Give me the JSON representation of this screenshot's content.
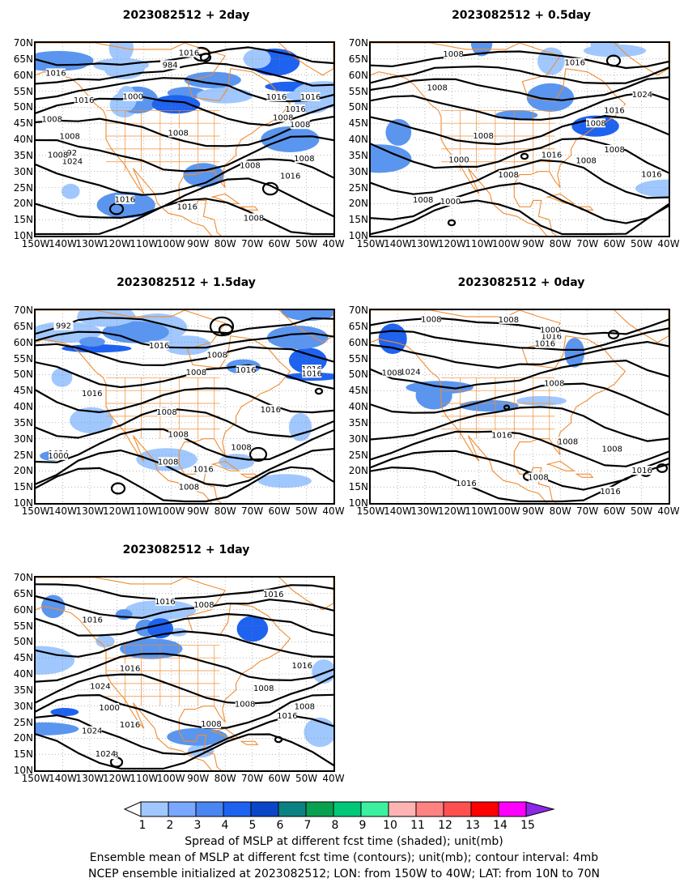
{
  "panels": [
    {
      "title": "2023082512  +  2day",
      "variant": 0,
      "contour_labels": [
        "1008",
        "1016",
        "1016",
        "1016",
        "1016",
        "1016",
        "1016",
        "1008",
        "1008",
        "1016",
        "1008",
        "1008",
        "1008",
        "1008",
        "992",
        "984",
        "1000",
        "1016",
        "1016",
        "1024",
        "1008",
        "1008"
      ]
    },
    {
      "title": "2023082512  +  0.5day",
      "variant": 1,
      "contour_labels": [
        "1008",
        "1008",
        "1024",
        "1016",
        "1016",
        "1008",
        "1016",
        "1000",
        "1008",
        "1016",
        "1008",
        "1008",
        "1008",
        "1008",
        "1000"
      ]
    },
    {
      "title": "2023082512  +  1.5day",
      "variant": 2,
      "contour_labels": [
        "1008",
        "1016",
        "1024",
        "1016",
        "1016",
        "1016",
        "1016",
        "1008",
        "1008",
        "1008",
        "1008",
        "992",
        "1000",
        "1016",
        "1008",
        "1016",
        "1008"
      ]
    },
    {
      "title": "2023082512  +  0day",
      "variant": 3,
      "contour_labels": [
        "1008",
        "1016",
        "1024",
        "1016",
        "1016",
        "1008",
        "1016",
        "1008",
        "1008",
        "1008",
        "1000",
        "1008",
        "1016",
        "1016",
        "1008"
      ]
    },
    {
      "title": "2023082512  +  1day",
      "variant": 4,
      "contour_labels": [
        "1016",
        "1016",
        "1024",
        "1016",
        "1016",
        "1024",
        "1008",
        "1016",
        "1016",
        "1008",
        "1008",
        "1000",
        "1008",
        "1008",
        "1016",
        "1024",
        "1008"
      ]
    }
  ],
  "lat_ticks": [
    "70N",
    "65N",
    "60N",
    "55N",
    "50N",
    "45N",
    "40N",
    "35N",
    "30N",
    "25N",
    "20N",
    "15N",
    "10N"
  ],
  "lon_ticks": [
    "150W",
    "140W",
    "130W",
    "120W",
    "110W",
    "100W",
    "90W",
    "80W",
    "70W",
    "60W",
    "50W",
    "40W"
  ],
  "colorbar": {
    "colors": [
      "#a0c8ff",
      "#78a8ff",
      "#4a86f2",
      "#1e62f0",
      "#0a46c8",
      "#0a8282",
      "#09a050",
      "#00c878",
      "#3cf0a0",
      "#ffb4b4",
      "#ff8282",
      "#ff5050",
      "#ff0000",
      "#ff00ff",
      "#8c28e6"
    ],
    "labels": [
      "1",
      "2",
      "3",
      "4",
      "5",
      "6",
      "7",
      "8",
      "9",
      "10",
      "11",
      "12",
      "13",
      "14",
      "15"
    ]
  },
  "colors": {
    "contour": "#000000",
    "coast": "#f08c32",
    "shade_light": "#a0c8ff",
    "shade_mid": "#5a96f0",
    "shade_dark": "#1e62f0",
    "grid": "#888888"
  },
  "footer": [
    "Spread of MSLP at different fcst time (shaded); unit(mb)",
    "Ensemble mean of MSLP at different fcst time (contours); unit(mb); contour interval: 4mb",
    "NCEP ensemble initialized at 2023082512; LON: from 150W to 40W; LAT: from 10N to 70N"
  ]
}
